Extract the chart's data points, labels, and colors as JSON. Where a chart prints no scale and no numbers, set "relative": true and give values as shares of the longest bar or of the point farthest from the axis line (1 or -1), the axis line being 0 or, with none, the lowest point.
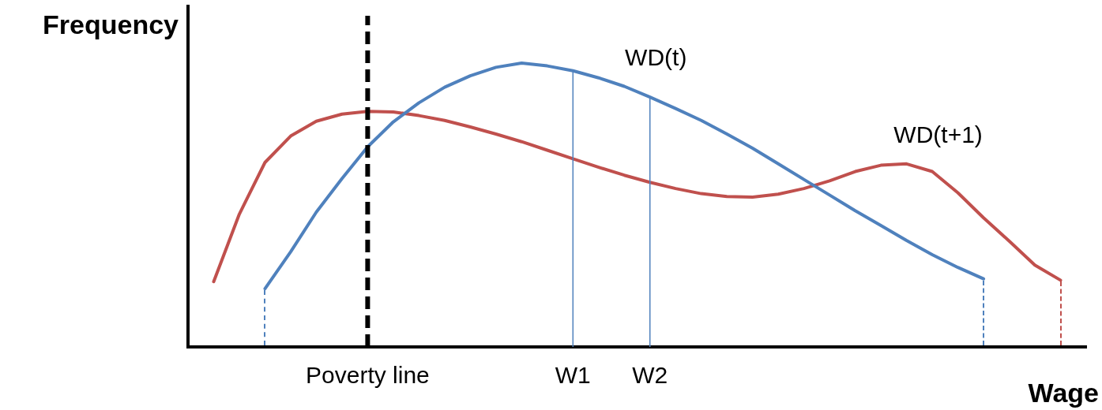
{
  "chart_data": {
    "type": "line",
    "relative": true,
    "xlabel": "Wage",
    "ylabel": "Frequency",
    "tick_labels": "x",
    "categories": [
      null,
      null,
      null,
      null,
      null,
      null,
      null,
      "Poverty line",
      null,
      null,
      null,
      null,
      null,
      null,
      null,
      "W1",
      null,
      null,
      "W2",
      null,
      null,
      null,
      null,
      null,
      null,
      null,
      null,
      null,
      null,
      null,
      null,
      null,
      null,
      null,
      null,
      null
    ],
    "series": [
      {
        "name": "WD(t)",
        "color": "#4f81bd",
        "values": [
          null,
          null,
          null,
          0.205,
          0.335,
          0.475,
          0.593,
          0.705,
          0.793,
          0.86,
          0.915,
          0.955,
          0.985,
          1,
          0.99,
          0.973,
          0.948,
          0.918,
          0.88,
          0.84,
          0.798,
          0.75,
          0.7,
          0.645,
          0.59,
          0.535,
          0.48,
          0.428,
          0.375,
          0.325,
          0.28,
          0.24,
          null,
          null,
          null,
          null
        ]
      },
      {
        "name": "WD(t+1)",
        "color": "#c0504d",
        "values": [
          null,
          0.23,
          0.468,
          0.65,
          0.743,
          0.795,
          0.82,
          0.83,
          0.828,
          0.815,
          0.798,
          0.775,
          0.75,
          0.723,
          0.693,
          0.663,
          0.633,
          0.605,
          0.58,
          0.558,
          0.54,
          0.53,
          0.528,
          0.538,
          0.558,
          0.585,
          0.618,
          0.64,
          0.645,
          0.618,
          0.543,
          0.455,
          0.373,
          0.288,
          0.235,
          null
        ]
      }
    ],
    "ref_lines": [
      {
        "axis": "x",
        "value": "Poverty line",
        "color": "#000000",
        "line_style": "dashed"
      },
      {
        "axis": "x",
        "value": "W1",
        "color": "#4f81bd"
      },
      {
        "axis": "x",
        "value": "W2",
        "color": "#4f81bd"
      }
    ]
  }
}
